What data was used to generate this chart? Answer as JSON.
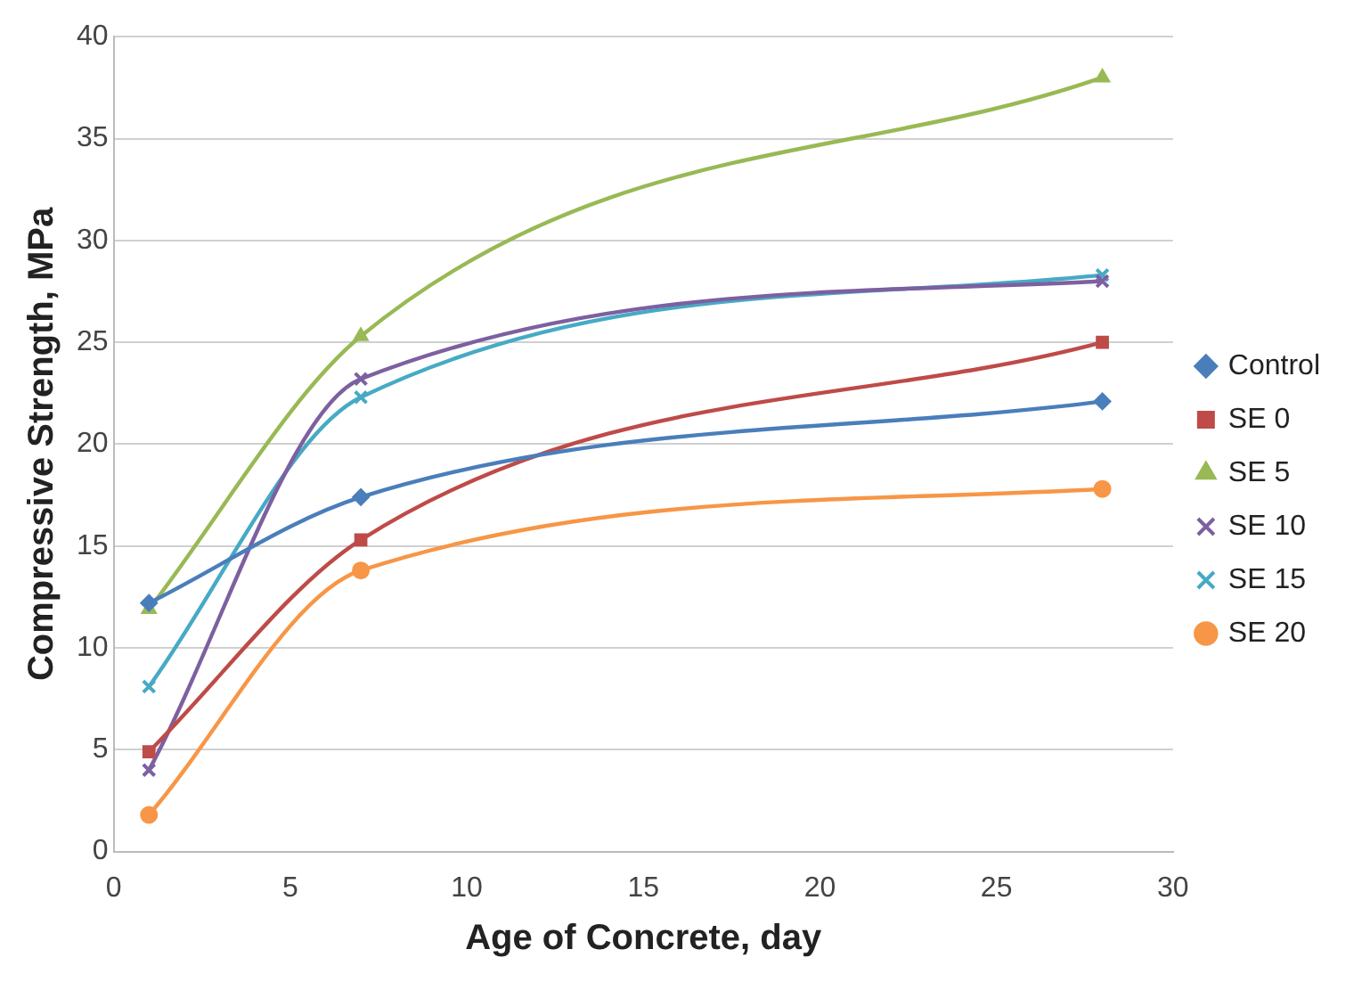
{
  "chart_data": {
    "type": "line",
    "xlabel": "Age of Concrete, day",
    "ylabel": "Compressive Strength, MPa",
    "xlim": [
      0,
      30
    ],
    "xticks": [
      0,
      5,
      10,
      15,
      20,
      25,
      30
    ],
    "ylim": [
      0,
      40
    ],
    "yticks": [
      0,
      5,
      10,
      15,
      20,
      25,
      30,
      35,
      40
    ],
    "grid": "y",
    "legend": "right",
    "series": [
      {
        "name": "Control",
        "color": "#4a7ebb",
        "marker": "diamond",
        "x": [
          1,
          7,
          28
        ],
        "values": [
          12.2,
          17.4,
          22.1
        ]
      },
      {
        "name": "SE 0",
        "color": "#be4b48",
        "marker": "square",
        "x": [
          1,
          7,
          28
        ],
        "values": [
          4.9,
          15.3,
          25.0
        ]
      },
      {
        "name": "SE 5",
        "color": "#98b954",
        "marker": "triangle",
        "x": [
          1,
          7,
          28
        ],
        "values": [
          11.9,
          25.3,
          38.0
        ]
      },
      {
        "name": "SE 10",
        "color": "#7d60a0",
        "marker": "cross",
        "x": [
          1,
          7,
          28
        ],
        "values": [
          4.0,
          23.2,
          28.0
        ]
      },
      {
        "name": "SE 15",
        "color": "#46aac5",
        "marker": "cross",
        "x": [
          1,
          7,
          28
        ],
        "values": [
          8.1,
          22.3,
          28.3
        ]
      },
      {
        "name": "SE 20",
        "color": "#f79646",
        "marker": "circle",
        "x": [
          1,
          7,
          28
        ],
        "values": [
          1.8,
          13.8,
          17.8
        ]
      }
    ]
  }
}
